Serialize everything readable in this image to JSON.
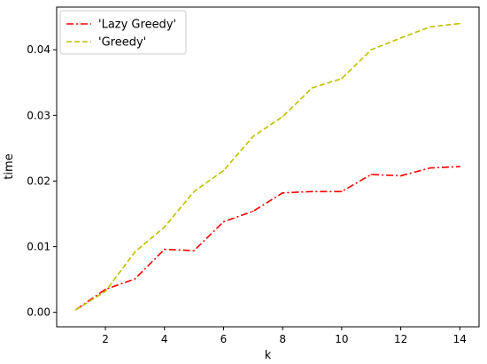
{
  "chart_data": {
    "type": "line",
    "xlabel": "k",
    "ylabel": "time",
    "xlim": [
      0.35,
      14.65
    ],
    "ylim": [
      -0.0022,
      0.0465
    ],
    "xticks": [
      2,
      4,
      6,
      8,
      10,
      12,
      14
    ],
    "yticks": [
      0.0,
      0.01,
      0.02,
      0.03,
      0.04
    ],
    "ytick_labels": [
      "0.00",
      "0.01",
      "0.02",
      "0.03",
      "0.04"
    ],
    "grid": false,
    "legend_position": "top-left",
    "x": [
      1,
      2,
      3,
      4,
      5,
      6,
      7,
      8,
      9,
      10,
      11,
      12,
      13,
      14
    ],
    "series": [
      {
        "name": "'Lazy Greedy'",
        "color": "#ff0000",
        "line_style": "dash-dot",
        "values": [
          0.0004,
          0.0035,
          0.0051,
          0.0096,
          0.0094,
          0.0138,
          0.0154,
          0.0182,
          0.0184,
          0.0184,
          0.021,
          0.0208,
          0.022,
          0.0222
        ]
      },
      {
        "name": "'Greedy'",
        "color": "#bfbf00",
        "line_style": "dashed",
        "values": [
          0.0004,
          0.0032,
          0.0092,
          0.013,
          0.0184,
          0.0216,
          0.0268,
          0.0298,
          0.0342,
          0.0356,
          0.04,
          0.0418,
          0.0435,
          0.044
        ]
      }
    ]
  }
}
